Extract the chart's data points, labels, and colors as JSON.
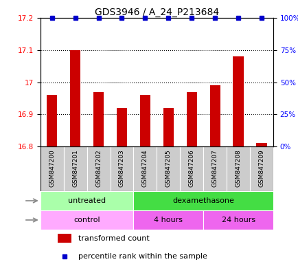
{
  "title": "GDS3946 / A_24_P213684",
  "samples": [
    "GSM847200",
    "GSM847201",
    "GSM847202",
    "GSM847203",
    "GSM847204",
    "GSM847205",
    "GSM847206",
    "GSM847207",
    "GSM847208",
    "GSM847209"
  ],
  "red_values": [
    16.96,
    17.1,
    16.97,
    16.92,
    16.96,
    16.92,
    16.97,
    16.99,
    17.08,
    16.81
  ],
  "blue_values": [
    100,
    100,
    100,
    100,
    100,
    100,
    100,
    100,
    100,
    100
  ],
  "ylim_left": [
    16.8,
    17.2
  ],
  "ylim_right": [
    0,
    100
  ],
  "yticks_left": [
    16.8,
    16.9,
    17.0,
    17.1,
    17.2
  ],
  "yticks_right": [
    0,
    25,
    50,
    75,
    100
  ],
  "agent_groups": [
    {
      "label": "untreated",
      "start": 0,
      "end": 4,
      "color": "#aaffaa"
    },
    {
      "label": "dexamethasone",
      "start": 4,
      "end": 10,
      "color": "#44dd44"
    }
  ],
  "time_groups": [
    {
      "label": "control",
      "start": 0,
      "end": 4,
      "color": "#ffaaff"
    },
    {
      "label": "4 hours",
      "start": 4,
      "end": 7,
      "color": "#ee66ee"
    },
    {
      "label": "24 hours",
      "start": 7,
      "end": 10,
      "color": "#ee66ee"
    }
  ],
  "bar_color": "#CC0000",
  "dot_color": "#0000CC",
  "title_fontsize": 10,
  "tick_fontsize": 7.5,
  "sample_fontsize": 6.5,
  "annot_fontsize": 8,
  "legend_fontsize": 8
}
